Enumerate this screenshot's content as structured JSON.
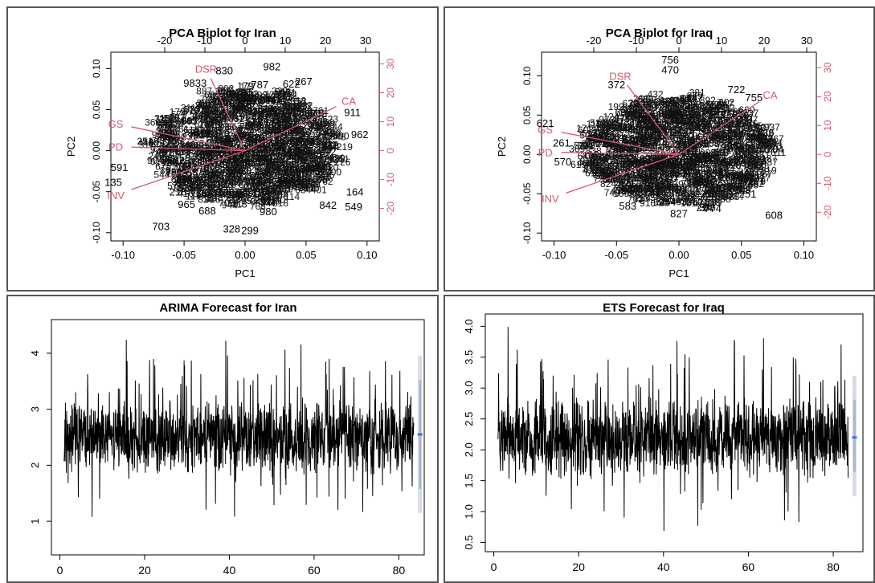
{
  "chart_data": [
    {
      "type": "scatter",
      "id": "biplot-iran",
      "title": "PCA Biplot for Iran",
      "xlabel": "PC1",
      "ylabel": "PC2",
      "xlim": [
        -0.11,
        0.11
      ],
      "ylim": [
        -0.11,
        0.12
      ],
      "x_ticks": [
        "-0.10",
        "-0.05",
        "0.00",
        "0.05",
        "0.10"
      ],
      "y_ticks": [
        "-0.10",
        "-0.05",
        "0.00",
        "0.05",
        "0.10"
      ],
      "top_ticks": [
        "-20",
        "-10",
        "0",
        "10",
        "20",
        "30"
      ],
      "right_ticks": [
        "-20",
        "-10",
        "0",
        "10",
        "20",
        "30"
      ],
      "loading_color": "#d05a6e",
      "point_labels": [
        {
          "label": "982",
          "x": 0.022,
          "y": 0.102
        },
        {
          "label": "830",
          "x": -0.017,
          "y": 0.097
        },
        {
          "label": "9833",
          "x": -0.041,
          "y": 0.082
        },
        {
          "label": "787",
          "x": 0.012,
          "y": 0.08
        },
        {
          "label": "622",
          "x": 0.038,
          "y": 0.081
        },
        {
          "label": "267",
          "x": 0.048,
          "y": 0.084
        },
        {
          "label": "911",
          "x": 0.088,
          "y": 0.046
        },
        {
          "label": "962",
          "x": 0.094,
          "y": 0.019
        },
        {
          "label": "591",
          "x": -0.103,
          "y": -0.021
        },
        {
          "label": "135",
          "x": -0.108,
          "y": -0.039
        },
        {
          "label": "218",
          "x": -0.055,
          "y": -0.051
        },
        {
          "label": "965",
          "x": -0.048,
          "y": -0.066
        },
        {
          "label": "688",
          "x": -0.031,
          "y": -0.074
        },
        {
          "label": "164",
          "x": 0.09,
          "y": -0.051
        },
        {
          "label": "842",
          "x": 0.068,
          "y": -0.067
        },
        {
          "label": "549",
          "x": 0.089,
          "y": -0.069
        },
        {
          "label": "980",
          "x": 0.019,
          "y": -0.075
        },
        {
          "label": "703",
          "x": -0.069,
          "y": -0.093
        },
        {
          "label": "328",
          "x": -0.011,
          "y": -0.096
        },
        {
          "label": "299",
          "x": 0.004,
          "y": -0.098
        }
      ],
      "loadings": [
        {
          "label": "DSR",
          "x": -0.032,
          "y": 0.1
        },
        {
          "label": "CA",
          "x": 0.085,
          "y": 0.061
        },
        {
          "label": "GS",
          "x": -0.106,
          "y": 0.033
        },
        {
          "label": "PD",
          "x": -0.106,
          "y": 0.005
        },
        {
          "label": "INV",
          "x": -0.106,
          "y": -0.054
        }
      ]
    },
    {
      "type": "scatter",
      "id": "biplot-iraq",
      "title": "PCA Biplot for Iraq",
      "xlabel": "PC1",
      "ylabel": "PC2",
      "xlim": [
        -0.11,
        0.11
      ],
      "ylim": [
        -0.11,
        0.13
      ],
      "x_ticks": [
        "-0.10",
        "-0.05",
        "0.00",
        "0.05",
        "0.10"
      ],
      "y_ticks": [
        "-0.10",
        "-0.05",
        "0.00",
        "0.05",
        "0.10"
      ],
      "top_ticks": [
        "-20",
        "-10",
        "0",
        "10",
        "20",
        "30"
      ],
      "right_ticks": [
        "-20",
        "-10",
        "0",
        "10",
        "20",
        "30"
      ],
      "loading_color": "#d05a6e",
      "point_labels": [
        {
          "label": "756",
          "x": -0.007,
          "y": 0.12
        },
        {
          "label": "470",
          "x": -0.007,
          "y": 0.107
        },
        {
          "label": "372",
          "x": -0.05,
          "y": 0.088
        },
        {
          "label": "722",
          "x": 0.046,
          "y": 0.082
        },
        {
          "label": "755",
          "x": 0.06,
          "y": 0.072
        },
        {
          "label": "704",
          "x": 0.077,
          "y": 0.006
        },
        {
          "label": "621",
          "x": -0.107,
          "y": 0.039
        },
        {
          "label": "261",
          "x": -0.094,
          "y": 0.014
        },
        {
          "label": "570",
          "x": -0.093,
          "y": -0.01
        },
        {
          "label": "583",
          "x": -0.041,
          "y": -0.066
        },
        {
          "label": "827",
          "x": 0.0,
          "y": -0.076
        },
        {
          "label": "774",
          "x": 0.027,
          "y": -0.069
        },
        {
          "label": "251",
          "x": 0.055,
          "y": -0.051
        },
        {
          "label": "608",
          "x": 0.076,
          "y": -0.078
        }
      ],
      "loadings": [
        {
          "label": "DSR",
          "x": -0.047,
          "y": 0.1
        },
        {
          "label": "CA",
          "x": 0.073,
          "y": 0.076
        },
        {
          "label": "GS",
          "x": -0.107,
          "y": 0.032
        },
        {
          "label": "PD",
          "x": -0.107,
          "y": 0.003
        },
        {
          "label": "INV",
          "x": -0.103,
          "y": -0.056
        }
      ]
    },
    {
      "type": "line",
      "id": "arima-iran",
      "title": "ARIMA Forecast for Iran",
      "xlim": [
        -2,
        86
      ],
      "ylim": [
        0.4,
        4.6
      ],
      "x_ticks": [
        0,
        20,
        40,
        60,
        80
      ],
      "y_ticks": [
        1,
        2,
        3,
        4
      ],
      "series_color": "#000000",
      "forecast_color": "#3a78d8",
      "forecast_x": 85,
      "forecast_value": 2.55,
      "forecast_interval": [
        1.15,
        3.95
      ]
    },
    {
      "type": "line",
      "id": "ets-iraq",
      "title": "ETS Forecast for Iraq",
      "xlim": [
        -2,
        87
      ],
      "ylim": [
        0.35,
        4.2
      ],
      "x_ticks": [
        0,
        20,
        40,
        60,
        80
      ],
      "y_ticks": [
        "0.5",
        "1.0",
        "1.5",
        "2.0",
        "2.5",
        "3.0",
        "3.5",
        "4.0"
      ],
      "series_color": "#000000",
      "forecast_color": "#3a78d8",
      "forecast_x": 85,
      "forecast_value": 2.2,
      "forecast_interval": [
        1.25,
        3.2
      ]
    }
  ]
}
